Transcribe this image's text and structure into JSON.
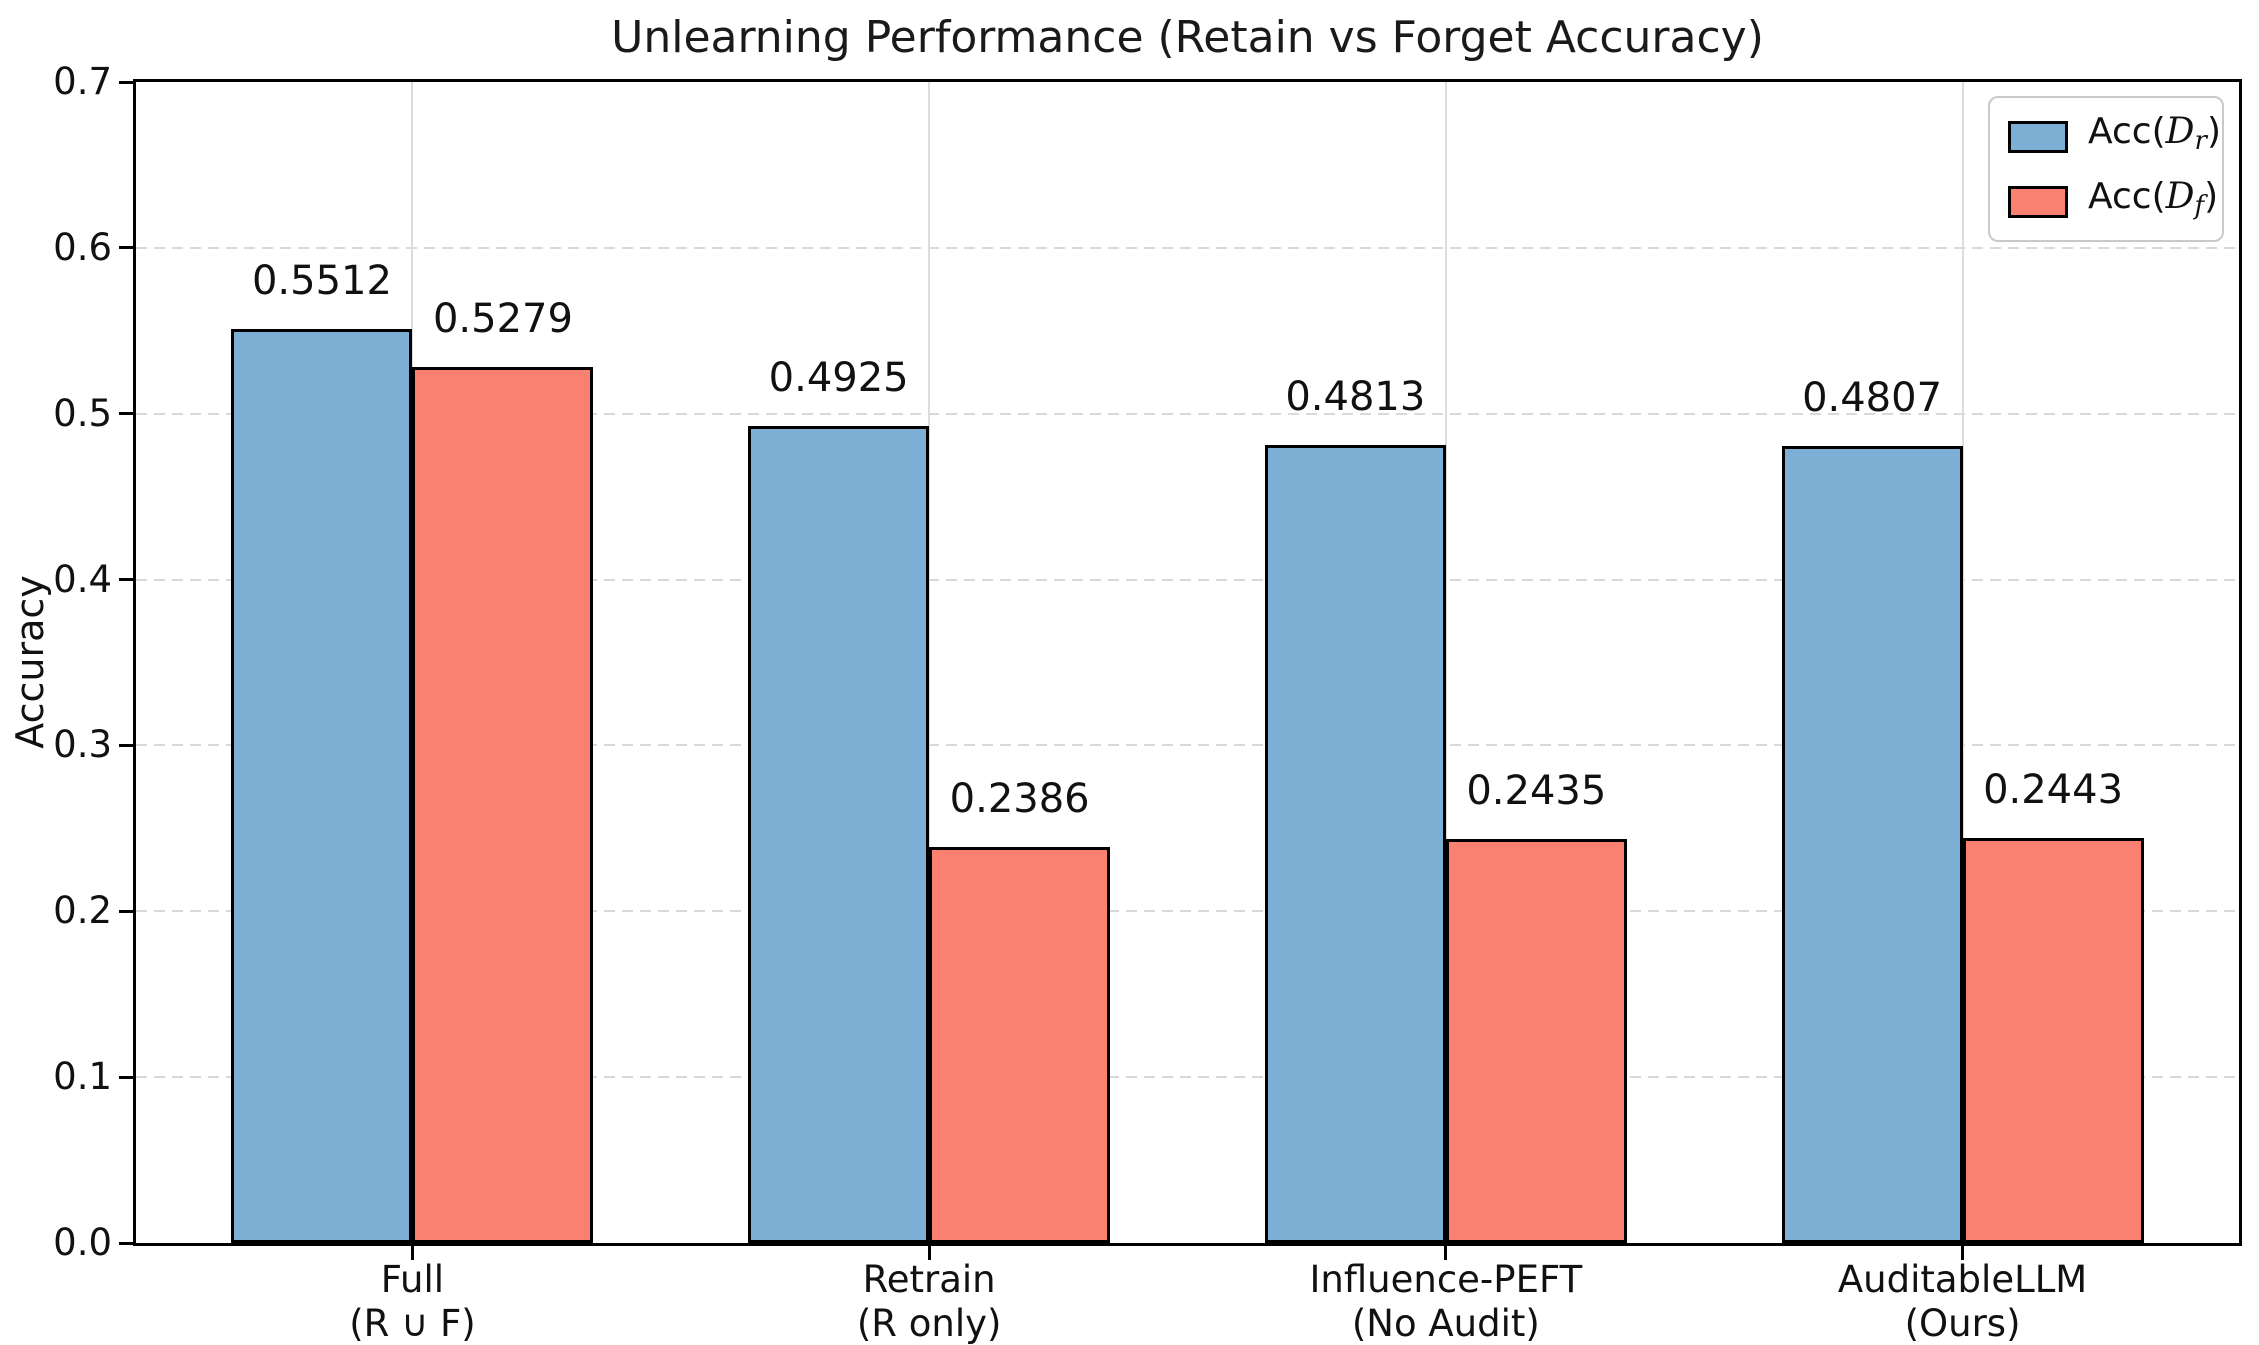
{
  "title": "Unlearning Performance (Retain vs Forget Accuracy)",
  "ylabel": "Accuracy",
  "legend": {
    "entries": [
      {
        "prefix": "Acc(",
        "symbol": "D",
        "subscript": "r",
        "suffix": ")",
        "color": "#7CAFD3"
      },
      {
        "prefix": "Acc(",
        "symbol": "D",
        "subscript": "f",
        "suffix": ")",
        "color": "#FA8172"
      }
    ]
  },
  "chart_data": {
    "type": "bar",
    "title": "Unlearning Performance (Retain vs Forget Accuracy)",
    "xlabel": "",
    "ylabel": "Accuracy",
    "ylim": [
      0.0,
      0.7
    ],
    "ytick_labels": [
      "0.0",
      "0.1",
      "0.2",
      "0.3",
      "0.4",
      "0.5",
      "0.6",
      "0.7"
    ],
    "grid": {
      "horizontal": "dashed",
      "vertical": "solid",
      "on": true
    },
    "legend_position": "upper right",
    "bar_edgecolor": "#000000",
    "categories": [
      {
        "line1": "Full",
        "line2": "(R ∪ F)"
      },
      {
        "line1": "Retrain",
        "line2": "(R only)"
      },
      {
        "line1": "Influence-PEFT",
        "line2": "(No Audit)"
      },
      {
        "line1": "AuditableLLM",
        "line2": "(Ours)"
      }
    ],
    "series": [
      {
        "name": "Acc(D_r)",
        "slug": "acc-dr",
        "color": "#7CAFD3",
        "values": [
          0.5512,
          0.4925,
          0.4813,
          0.4807
        ],
        "labels": [
          "0.5512",
          "0.4925",
          "0.4813",
          "0.4807"
        ]
      },
      {
        "name": "Acc(D_f)",
        "slug": "acc-df",
        "color": "#FA8172",
        "values": [
          0.5279,
          0.2386,
          0.2435,
          0.2443
        ],
        "labels": [
          "0.5279",
          "0.2386",
          "0.2435",
          "0.2443"
        ]
      }
    ]
  }
}
